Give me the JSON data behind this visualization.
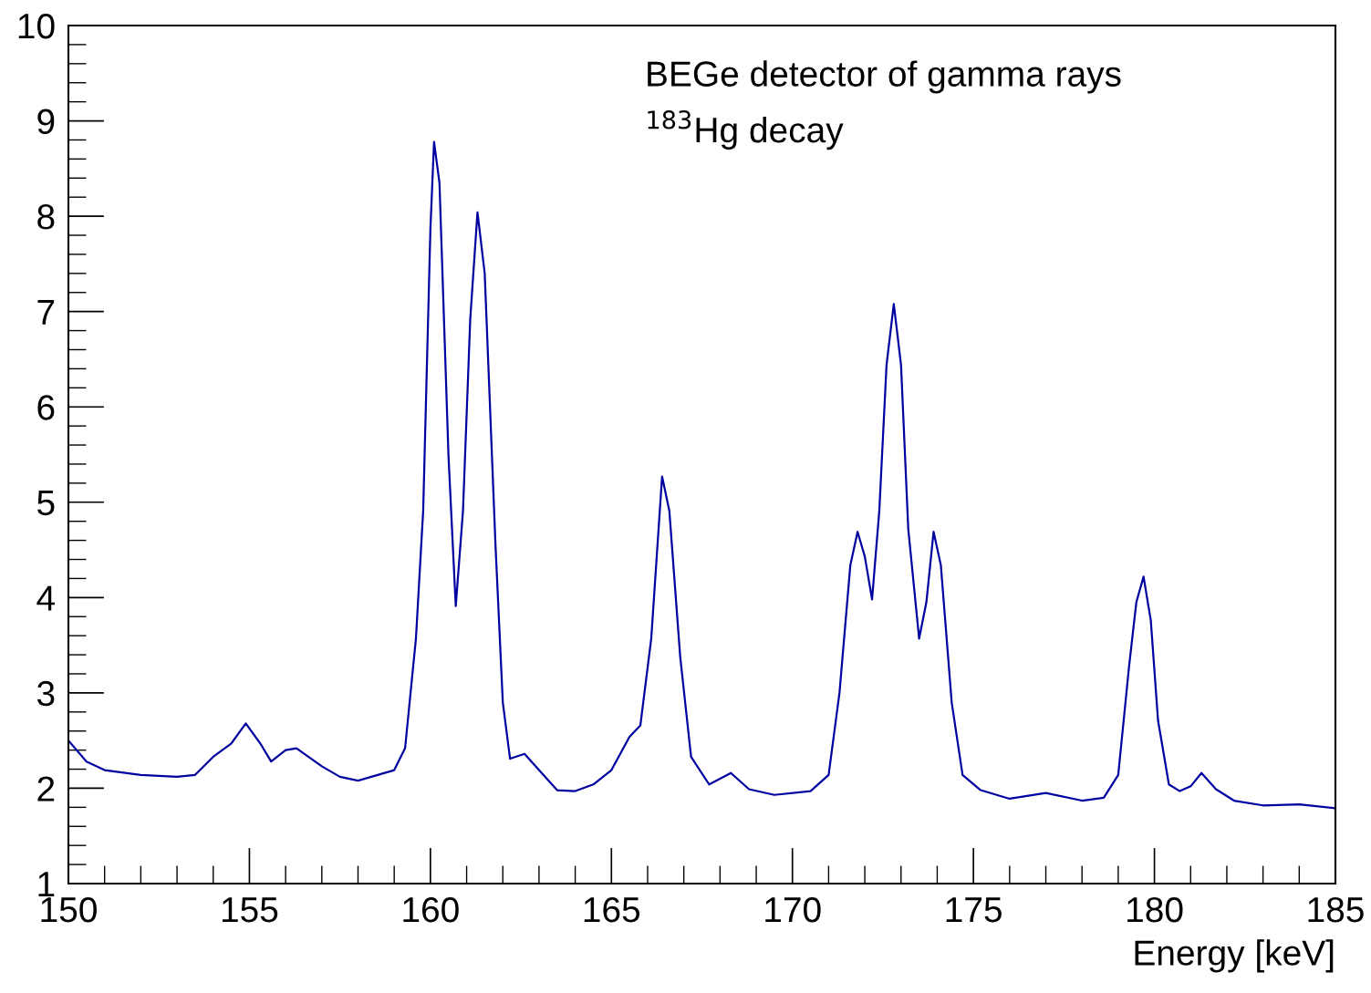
{
  "chart_data": {
    "type": "line",
    "xlabel": "Energy [keV]",
    "annotations": [
      "BEGe detector of gamma rays",
      "$^{183}$Hg decay"
    ],
    "xlim": [
      150,
      185
    ],
    "xticks": [
      150,
      155,
      160,
      165,
      170,
      175,
      180,
      185
    ],
    "ylim": [
      1,
      10
    ],
    "yticks": [
      1,
      2,
      3,
      4,
      5,
      6,
      7,
      8,
      9,
      10
    ],
    "grid": false,
    "legend": false,
    "marker": "none",
    "line_style": "solid",
    "series": [
      {
        "color": "#0000a0",
        "x": [
          150.0,
          150.5,
          151,
          152,
          153,
          153.5,
          154,
          154.5,
          154.9,
          155.3,
          155.6,
          156.0,
          156.3,
          157,
          157.5,
          158,
          159,
          159.3,
          159.6,
          159.8,
          160.0,
          160.1,
          160.25,
          160.5,
          160.7,
          160.9,
          161.1,
          161.3,
          161.5,
          161.8,
          162.0,
          162.2,
          162.6,
          163,
          163.5,
          164,
          164.5,
          165,
          165.5,
          165.8,
          166.1,
          166.4,
          166.6,
          166.9,
          167.2,
          167.7,
          168.3,
          168.8,
          169.5,
          170.5,
          171.0,
          171.3,
          171.6,
          171.8,
          172.0,
          172.2,
          172.4,
          172.6,
          172.8,
          173.0,
          173.2,
          173.5,
          173.7,
          173.9,
          174.1,
          174.4,
          174.7,
          175.2,
          176,
          177,
          178,
          178.6,
          179.0,
          179.3,
          179.5,
          179.7,
          179.9,
          180.1,
          180.4,
          180.7,
          181.0,
          181.3,
          181.7,
          182.2,
          183,
          184,
          185
        ],
        "values": [
          2.5,
          2.28,
          2.19,
          2.14,
          2.12,
          2.14,
          2.33,
          2.47,
          2.68,
          2.47,
          2.28,
          2.4,
          2.42,
          2.23,
          2.12,
          2.08,
          2.19,
          2.42,
          3.57,
          4.91,
          7.87,
          8.78,
          8.35,
          5.48,
          3.91,
          4.91,
          6.92,
          8.04,
          7.4,
          4.53,
          2.9,
          2.31,
          2.36,
          2.19,
          1.98,
          1.97,
          2.04,
          2.19,
          2.54,
          2.66,
          3.57,
          5.27,
          4.91,
          3.38,
          2.33,
          2.04,
          2.16,
          1.99,
          1.93,
          1.97,
          2.14,
          3.0,
          4.34,
          4.69,
          4.43,
          3.98,
          4.91,
          6.44,
          7.08,
          6.44,
          4.72,
          3.57,
          3.95,
          4.69,
          4.34,
          2.9,
          2.14,
          1.98,
          1.89,
          1.95,
          1.87,
          1.9,
          2.14,
          3.28,
          3.95,
          4.22,
          3.76,
          2.71,
          2.04,
          1.97,
          2.02,
          2.16,
          1.99,
          1.87,
          1.82,
          1.83,
          1.79
        ]
      }
    ]
  }
}
